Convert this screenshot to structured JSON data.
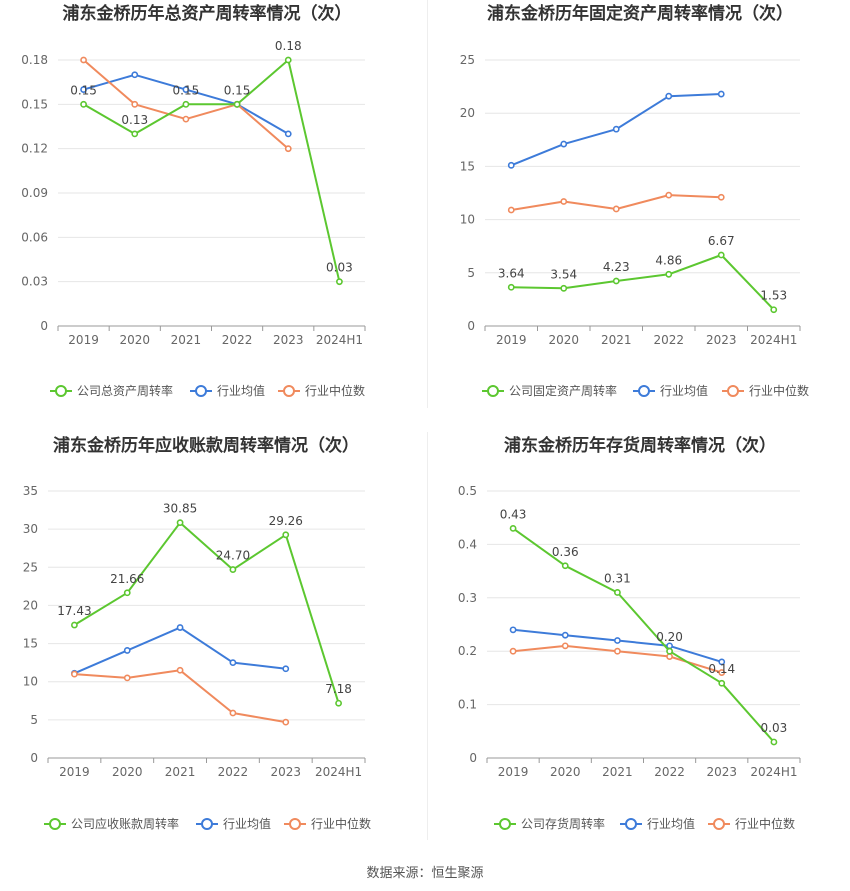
{
  "source_label": "数据来源：恒生聚源",
  "chart_data": [
    {
      "type": "line",
      "title": "浦东金桥历年总资产周转率情况（次）",
      "categories": [
        "2019",
        "2020",
        "2021",
        "2022",
        "2023",
        "2024H1"
      ],
      "ylim": [
        0,
        0.18
      ],
      "yticks": [
        "0",
        "0.03",
        "0.06",
        "0.09",
        "0.12",
        "0.15",
        "0.18"
      ],
      "tick_values": [
        0,
        0.03,
        0.06,
        0.09,
        0.12,
        0.15,
        0.18
      ],
      "series": [
        {
          "name": "公司总资产周转率",
          "color": "#5cc730",
          "values": [
            0.15,
            0.13,
            0.15,
            0.15,
            0.18,
            0.03
          ],
          "labels": [
            "0.15",
            "0.13",
            "0.15",
            "0.15",
            "0.18",
            "0.03"
          ]
        },
        {
          "name": "行业均值",
          "color": "#3d7bd9",
          "values": [
            0.16,
            0.17,
            0.16,
            0.15,
            0.13,
            null
          ]
        },
        {
          "name": "行业中位数",
          "color": "#f08a5d",
          "values": [
            0.18,
            0.15,
            0.14,
            0.15,
            0.12,
            null
          ]
        }
      ]
    },
    {
      "type": "line",
      "title": "浦东金桥历年固定资产周转率情况（次）",
      "categories": [
        "2019",
        "2020",
        "2021",
        "2022",
        "2023",
        "2024H1"
      ],
      "ylim": [
        0,
        25
      ],
      "yticks": [
        "0",
        "5",
        "10",
        "15",
        "20",
        "25"
      ],
      "tick_values": [
        0,
        5,
        10,
        15,
        20,
        25
      ],
      "series": [
        {
          "name": "公司固定资产周转率",
          "color": "#5cc730",
          "values": [
            3.64,
            3.54,
            4.23,
            4.86,
            6.67,
            1.53
          ],
          "labels": [
            "3.64",
            "3.54",
            "4.23",
            "4.86",
            "6.67",
            "1.53"
          ]
        },
        {
          "name": "行业均值",
          "color": "#3d7bd9",
          "values": [
            15.1,
            17.1,
            18.5,
            21.6,
            21.8,
            null
          ]
        },
        {
          "name": "行业中位数",
          "color": "#f08a5d",
          "values": [
            10.9,
            11.7,
            11.0,
            12.3,
            12.1,
            null
          ]
        }
      ]
    },
    {
      "type": "line",
      "title": "浦东金桥历年应收账款周转率情况（次）",
      "categories": [
        "2019",
        "2020",
        "2021",
        "2022",
        "2023",
        "2024H1"
      ],
      "ylim": [
        0,
        35
      ],
      "yticks": [
        "0",
        "5",
        "10",
        "15",
        "20",
        "25",
        "30",
        "35"
      ],
      "tick_values": [
        0,
        5,
        10,
        15,
        20,
        25,
        30,
        35
      ],
      "series": [
        {
          "name": "公司应收账款周转率",
          "color": "#5cc730",
          "values": [
            17.43,
            21.66,
            30.85,
            24.7,
            29.26,
            7.18
          ],
          "labels": [
            "17.43",
            "21.66",
            "30.85",
            "24.70",
            "29.26",
            "7.18"
          ]
        },
        {
          "name": "行业均值",
          "color": "#3d7bd9",
          "values": [
            11.1,
            14.1,
            17.1,
            12.5,
            11.7,
            null
          ]
        },
        {
          "name": "行业中位数",
          "color": "#f08a5d",
          "values": [
            11.0,
            10.5,
            11.5,
            5.9,
            4.7,
            null
          ]
        }
      ]
    },
    {
      "type": "line",
      "title": "浦东金桥历年存货周转率情况（次）",
      "categories": [
        "2019",
        "2020",
        "2021",
        "2022",
        "2023",
        "2024H1"
      ],
      "ylim": [
        0,
        0.5
      ],
      "yticks": [
        "0",
        "0.1",
        "0.2",
        "0.3",
        "0.4",
        "0.5"
      ],
      "tick_values": [
        0,
        0.1,
        0.2,
        0.3,
        0.4,
        0.5
      ],
      "series": [
        {
          "name": "公司存货周转率",
          "color": "#5cc730",
          "values": [
            0.43,
            0.36,
            0.31,
            0.2,
            0.14,
            0.03
          ],
          "labels": [
            "0.43",
            "0.36",
            "0.31",
            "0.20",
            "0.14",
            "0.03"
          ]
        },
        {
          "name": "行业均值",
          "color": "#3d7bd9",
          "values": [
            0.24,
            0.23,
            0.22,
            0.21,
            0.18,
            null
          ]
        },
        {
          "name": "行业中位数",
          "color": "#f08a5d",
          "values": [
            0.2,
            0.21,
            0.2,
            0.19,
            0.16,
            null
          ]
        }
      ]
    }
  ]
}
